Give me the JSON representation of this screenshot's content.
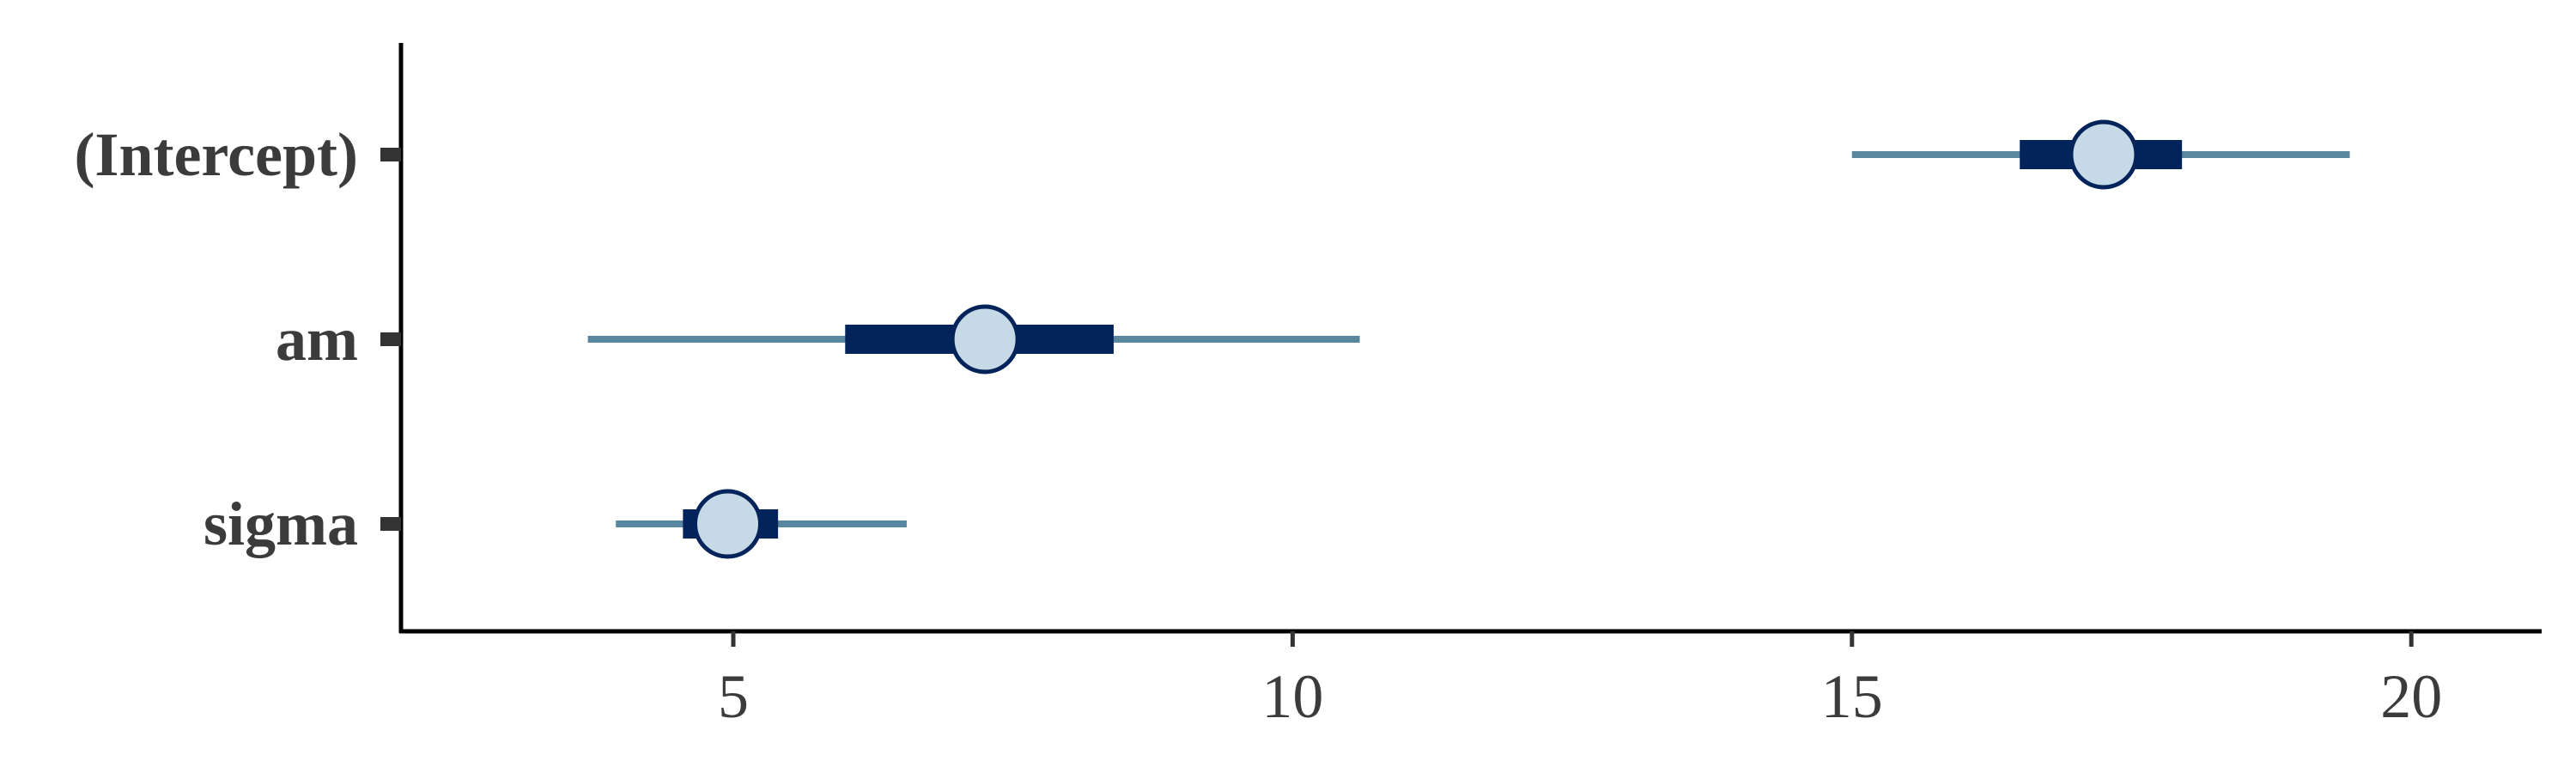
{
  "chart_data": {
    "type": "interval",
    "title": "",
    "xlabel": "",
    "ylabel": "",
    "xlim": [
      2.1,
      21.1
    ],
    "xticks": [
      5,
      10,
      15,
      20
    ],
    "parameters": [
      {
        "label": "(Intercept)",
        "median": 17.25,
        "inner": [
          16.5,
          17.95
        ],
        "outer": [
          15.0,
          19.45
        ]
      },
      {
        "label": "am",
        "median": 7.25,
        "inner": [
          6.0,
          8.4
        ],
        "outer": [
          3.7,
          10.6
        ]
      },
      {
        "label": "sigma",
        "median": 4.95,
        "inner": [
          4.55,
          5.4
        ],
        "outer": [
          3.95,
          6.55
        ]
      }
    ],
    "grid": false,
    "legend": "none",
    "colors": {
      "outer_interval": "#5a87a0",
      "inner_interval": "#03245b",
      "point_fill": "#c6d9e7",
      "point_stroke": "#03245b",
      "axis": "#000000",
      "tick": "#333333",
      "text": "#3b3b3b"
    }
  }
}
